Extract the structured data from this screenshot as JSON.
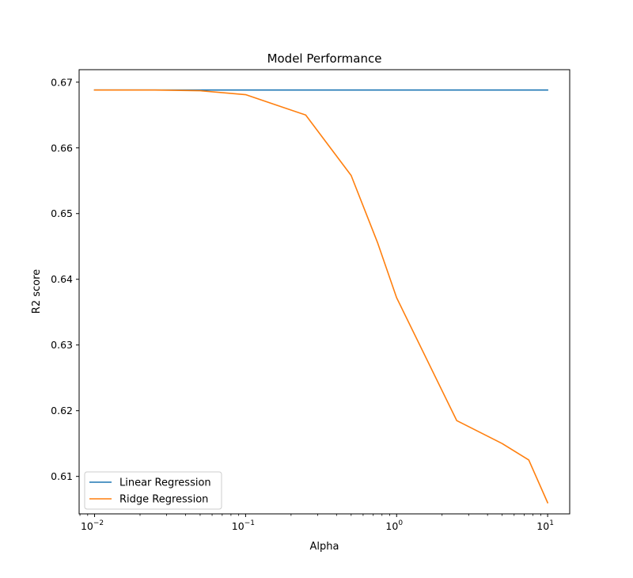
{
  "chart_data": {
    "type": "line",
    "title": "Model Performance",
    "xlabel": "Alpha",
    "ylabel": "R2 score",
    "xscale": "log",
    "xlim": [
      0.0079,
      14.0
    ],
    "ylim": [
      0.6043,
      0.6719
    ],
    "grid": false,
    "legend_position": "lower-left",
    "x_ticks": [
      {
        "value": 0.01,
        "base": "10",
        "exp": "−2"
      },
      {
        "value": 0.1,
        "base": "10",
        "exp": "−1"
      },
      {
        "value": 1,
        "base": "10",
        "exp": "0"
      },
      {
        "value": 10,
        "base": "10",
        "exp": "1"
      }
    ],
    "y_ticks": [
      0.61,
      0.62,
      0.63,
      0.64,
      0.65,
      0.66,
      0.67
    ],
    "y_tick_labels": [
      "0.61",
      "0.62",
      "0.63",
      "0.64",
      "0.65",
      "0.66",
      "0.67"
    ],
    "series": [
      {
        "name": "Linear Regression",
        "color": "#1f77b4",
        "x": [
          0.01,
          10
        ],
        "values": [
          0.6688,
          0.6688
        ]
      },
      {
        "name": "Ridge Regression",
        "color": "#ff7f0e",
        "x": [
          0.01,
          0.025,
          0.05,
          0.1,
          0.25,
          0.5,
          0.75,
          1.0,
          2.5,
          5.0,
          7.5,
          10
        ],
        "values": [
          0.6688,
          0.6688,
          0.6687,
          0.6681,
          0.665,
          0.6558,
          0.6455,
          0.6372,
          0.6185,
          0.615,
          0.6125,
          0.606
        ]
      }
    ]
  }
}
